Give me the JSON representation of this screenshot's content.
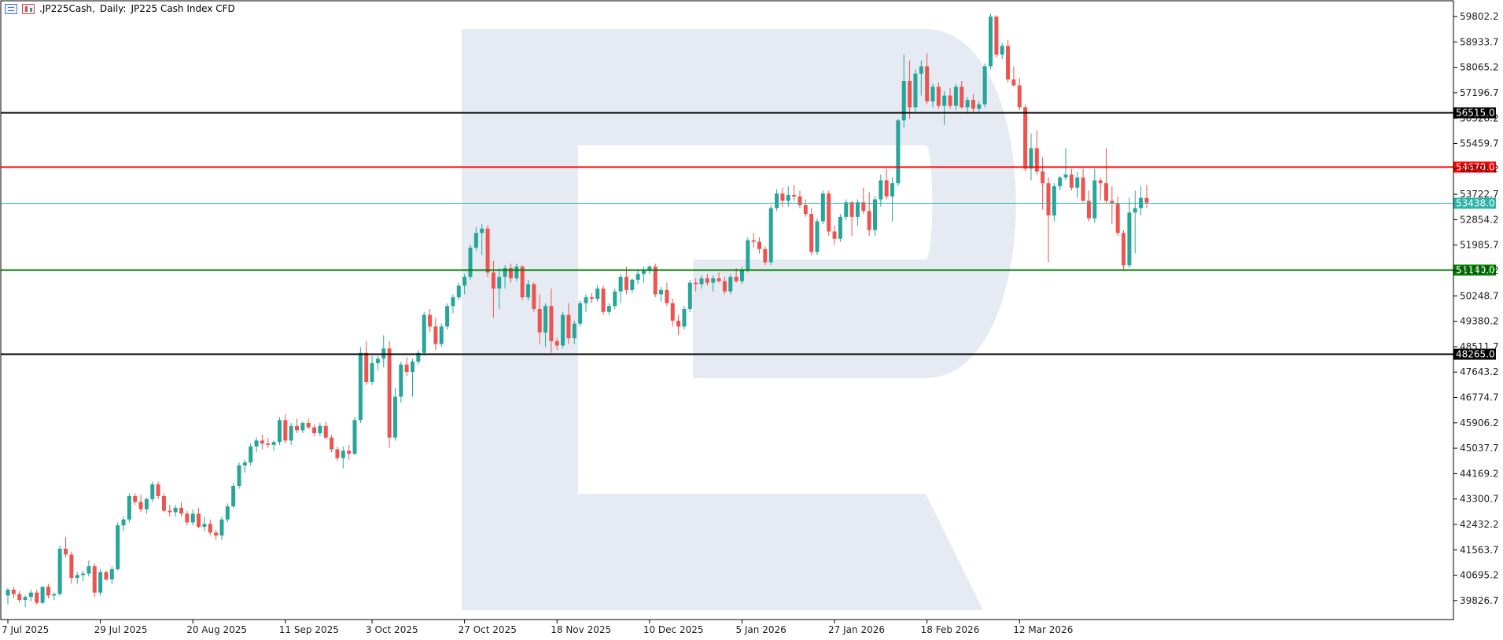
{
  "header": {
    "symbol": ".JP225Cash,",
    "timeframe": "Daily:",
    "description": "JP225 Cash Index CFD",
    "icons": [
      "chart-bars-icon",
      "chart-candles-icon"
    ]
  },
  "chart_data": {
    "type": "candlestick",
    "y_axis": {
      "min": 39500,
      "max": 60100,
      "ticks": [
        "59802.2",
        "58933.7",
        "58065.2",
        "57196.7",
        "56328.2",
        "55459.7",
        "54591.2",
        "53722.7",
        "52854.2",
        "51985.7",
        "51117.2",
        "50248.7",
        "49380.2",
        "48511.7",
        "47643.2",
        "46774.7",
        "45906.2",
        "45037.7",
        "44169.2",
        "43300.7",
        "42432.2",
        "41563.7",
        "40695.2",
        "39826.7"
      ]
    },
    "x_axis": {
      "labels": [
        {
          "text": "7 Jul 2025",
          "index": 0
        },
        {
          "text": "29 Jul 2025",
          "index": 16
        },
        {
          "text": "20 Aug 2025",
          "index": 32
        },
        {
          "text": "11 Sep 2025",
          "index": 48
        },
        {
          "text": "3 Oct 2025",
          "index": 63
        },
        {
          "text": "27 Oct 2025",
          "index": 79
        },
        {
          "text": "18 Nov 2025",
          "index": 95
        },
        {
          "text": "10 Dec 2025",
          "index": 111
        },
        {
          "text": "5 Jan 2026",
          "index": 127
        },
        {
          "text": "27 Jan 2026",
          "index": 143
        },
        {
          "text": "18 Feb 2026",
          "index": 159
        },
        {
          "text": "12 Mar 2026",
          "index": 175
        }
      ]
    },
    "levels": [
      {
        "value": 56515.0,
        "label": "56515.0",
        "color": "#000000",
        "style": "line-dark"
      },
      {
        "value": 54670.0,
        "label": "54670.0",
        "color": "#ff0000",
        "style": "line-red"
      },
      {
        "value": 53438.0,
        "label": "53438.0",
        "color": "#2ab3a8",
        "style": "line-current"
      },
      {
        "value": 51140.0,
        "label": "51140.0",
        "color": "#008000",
        "style": "line-green"
      },
      {
        "value": 48265.0,
        "label": "48265.0",
        "color": "#000000",
        "style": "line-dark"
      }
    ],
    "colors": {
      "bull": "#26a69a",
      "bear": "#ef5350",
      "grid": "#dddddd",
      "watermark": "#e6ebf3"
    },
    "candles": [
      [
        40000,
        40250,
        39700,
        40200
      ],
      [
        40200,
        40300,
        39900,
        40050
      ],
      [
        40050,
        40150,
        39750,
        39850
      ],
      [
        39850,
        40000,
        39600,
        39950
      ],
      [
        39950,
        40200,
        39800,
        40100
      ],
      [
        40100,
        40200,
        39700,
        39750
      ],
      [
        39750,
        40300,
        39700,
        40300
      ],
      [
        40300,
        40400,
        39900,
        40000
      ],
      [
        40000,
        40100,
        39850,
        40050
      ],
      [
        40050,
        41700,
        40000,
        41600
      ],
      [
        41600,
        42000,
        41300,
        41400
      ],
      [
        41400,
        41500,
        40400,
        40600
      ],
      [
        40600,
        40800,
        40400,
        40700
      ],
      [
        40700,
        40850,
        40500,
        40750
      ],
      [
        40750,
        41200,
        40650,
        41000
      ],
      [
        41000,
        41100,
        39950,
        40100
      ],
      [
        40100,
        40900,
        40000,
        40800
      ],
      [
        40800,
        40850,
        40500,
        40550
      ],
      [
        40550,
        41000,
        40400,
        40900
      ],
      [
        40900,
        42500,
        40850,
        42400
      ],
      [
        42400,
        42700,
        42200,
        42600
      ],
      [
        42600,
        43500,
        42500,
        43400
      ],
      [
        43400,
        43500,
        43100,
        43200
      ],
      [
        43200,
        43450,
        42850,
        42950
      ],
      [
        42950,
        43350,
        42800,
        43300
      ],
      [
        43300,
        43900,
        43200,
        43800
      ],
      [
        43800,
        43900,
        43300,
        43400
      ],
      [
        43400,
        43500,
        42850,
        42900
      ],
      [
        42900,
        43100,
        42700,
        42850
      ],
      [
        42850,
        43100,
        42700,
        43000
      ],
      [
        43000,
        43200,
        42700,
        42800
      ],
      [
        42800,
        42900,
        42400,
        42500
      ],
      [
        42500,
        42950,
        42400,
        42800
      ],
      [
        42800,
        43000,
        42300,
        42350
      ],
      [
        42350,
        42700,
        42200,
        42450
      ],
      [
        42450,
        42600,
        42050,
        42150
      ],
      [
        42150,
        42250,
        41900,
        42050
      ],
      [
        42050,
        42700,
        41900,
        42600
      ],
      [
        42600,
        43150,
        42500,
        43050
      ],
      [
        43050,
        43850,
        43000,
        43750
      ],
      [
        43750,
        44550,
        43650,
        44450
      ],
      [
        44450,
        44650,
        44200,
        44550
      ],
      [
        44550,
        45200,
        44450,
        45100
      ],
      [
        45100,
        45400,
        44900,
        45300
      ],
      [
        45300,
        45500,
        45000,
        45200
      ],
      [
        45200,
        45400,
        45050,
        45150
      ],
      [
        45150,
        45300,
        44950,
        45250
      ],
      [
        45250,
        46100,
        45150,
        46000
      ],
      [
        46000,
        46200,
        45200,
        45300
      ],
      [
        45300,
        45900,
        45150,
        45800
      ],
      [
        45800,
        46050,
        45550,
        45650
      ],
      [
        45650,
        45950,
        45550,
        45900
      ],
      [
        45900,
        46050,
        45700,
        45750
      ],
      [
        45750,
        45850,
        45450,
        45550
      ],
      [
        45550,
        45900,
        45450,
        45800
      ],
      [
        45800,
        45950,
        45350,
        45400
      ],
      [
        45400,
        45500,
        44900,
        45000
      ],
      [
        45000,
        45100,
        44600,
        44700
      ],
      [
        44700,
        45100,
        44350,
        44950
      ],
      [
        44950,
        45150,
        44650,
        44850
      ],
      [
        44850,
        46100,
        44800,
        46000
      ],
      [
        46000,
        48500,
        45900,
        48300
      ],
      [
        48300,
        48700,
        47200,
        47300
      ],
      [
        47300,
        48200,
        47200,
        47950
      ],
      [
        47950,
        48200,
        47700,
        48100
      ],
      [
        48100,
        48900,
        47800,
        48450
      ],
      [
        48450,
        48700,
        45050,
        45400
      ],
      [
        45400,
        47100,
        45300,
        46800
      ],
      [
        46800,
        48000,
        46600,
        47900
      ],
      [
        47900,
        48150,
        47500,
        47650
      ],
      [
        47650,
        48100,
        46800,
        48000
      ],
      [
        48000,
        48400,
        47900,
        48300
      ],
      [
        48300,
        49700,
        48200,
        49600
      ],
      [
        49600,
        49800,
        49000,
        49200
      ],
      [
        49200,
        49500,
        48400,
        48600
      ],
      [
        48600,
        49300,
        48500,
        49200
      ],
      [
        49200,
        50000,
        49100,
        49900
      ],
      [
        49900,
        50300,
        49650,
        50200
      ],
      [
        50200,
        50700,
        50100,
        50600
      ],
      [
        50600,
        51000,
        50300,
        50900
      ],
      [
        50900,
        52000,
        50800,
        51900
      ],
      [
        51900,
        52600,
        51800,
        52400
      ],
      [
        52400,
        52700,
        51650,
        52550
      ],
      [
        52550,
        52650,
        50900,
        51050
      ],
      [
        51050,
        51450,
        49500,
        50500
      ],
      [
        50500,
        51200,
        49800,
        50900
      ],
      [
        50900,
        51300,
        50500,
        51200
      ],
      [
        51200,
        51350,
        50700,
        50850
      ],
      [
        50850,
        51350,
        50750,
        51250
      ],
      [
        51250,
        51300,
        50100,
        50200
      ],
      [
        50200,
        50800,
        50100,
        50650
      ],
      [
        50650,
        50700,
        49700,
        49800
      ],
      [
        49800,
        50300,
        48600,
        49000
      ],
      [
        49000,
        50000,
        48500,
        49900
      ],
      [
        49900,
        50500,
        48300,
        48700
      ],
      [
        48700,
        48800,
        48400,
        48550
      ],
      [
        48550,
        49700,
        48450,
        49600
      ],
      [
        49600,
        50000,
        48600,
        48800
      ],
      [
        48800,
        49400,
        48600,
        49300
      ],
      [
        49300,
        50100,
        49200,
        50000
      ],
      [
        50000,
        50300,
        49700,
        50200
      ],
      [
        50200,
        50350,
        50000,
        50150
      ],
      [
        50150,
        50600,
        50050,
        50500
      ],
      [
        50500,
        50600,
        49600,
        49700
      ],
      [
        49700,
        50000,
        49600,
        49900
      ],
      [
        49900,
        50500,
        49800,
        50400
      ],
      [
        50400,
        51000,
        50000,
        50900
      ],
      [
        50900,
        51250,
        50300,
        50450
      ],
      [
        50450,
        50850,
        50350,
        50800
      ],
      [
        50800,
        51150,
        50650,
        51000
      ],
      [
        51000,
        51250,
        50700,
        51100
      ],
      [
        51100,
        51300,
        51000,
        51250
      ],
      [
        51250,
        51350,
        50200,
        50300
      ],
      [
        50300,
        50550,
        50050,
        50450
      ],
      [
        50450,
        50700,
        49900,
        50000
      ],
      [
        50000,
        50150,
        49200,
        49400
      ],
      [
        49400,
        49600,
        48900,
        49200
      ],
      [
        49200,
        49900,
        49100,
        49800
      ],
      [
        49800,
        50800,
        49700,
        50700
      ],
      [
        50700,
        50850,
        50400,
        50650
      ],
      [
        50650,
        50950,
        50500,
        50850
      ],
      [
        50850,
        51000,
        50600,
        50700
      ],
      [
        50700,
        50950,
        50400,
        50850
      ],
      [
        50850,
        51050,
        50700,
        50750
      ],
      [
        50750,
        50900,
        50300,
        50400
      ],
      [
        50400,
        51000,
        50300,
        50900
      ],
      [
        50900,
        51200,
        50700,
        50750
      ],
      [
        50750,
        51250,
        50650,
        51150
      ],
      [
        51150,
        52250,
        51050,
        52150
      ],
      [
        52150,
        52400,
        51900,
        52100
      ],
      [
        52100,
        52250,
        51700,
        51850
      ],
      [
        51850,
        51950,
        51300,
        51400
      ],
      [
        51400,
        53350,
        51300,
        53250
      ],
      [
        53250,
        53900,
        53150,
        53750
      ],
      [
        53750,
        53950,
        53300,
        53500
      ],
      [
        53500,
        54000,
        53300,
        53700
      ],
      [
        53700,
        54050,
        53500,
        53650
      ],
      [
        53650,
        53850,
        53250,
        53350
      ],
      [
        53350,
        53550,
        52950,
        53050
      ],
      [
        53050,
        53250,
        51650,
        51750
      ],
      [
        51750,
        52900,
        51650,
        52800
      ],
      [
        52800,
        53850,
        52700,
        53750
      ],
      [
        53750,
        53850,
        52300,
        52450
      ],
      [
        52450,
        52650,
        52000,
        52200
      ],
      [
        52200,
        53050,
        52100,
        52950
      ],
      [
        52950,
        53550,
        52850,
        53450
      ],
      [
        53450,
        53500,
        52300,
        52950
      ],
      [
        52950,
        53550,
        52650,
        53450
      ],
      [
        53450,
        53950,
        53050,
        53150
      ],
      [
        53150,
        53800,
        52300,
        52500
      ],
      [
        52500,
        53650,
        52300,
        53550
      ],
      [
        53550,
        54400,
        53300,
        54200
      ],
      [
        54200,
        54600,
        53550,
        53650
      ],
      [
        53650,
        54300,
        52800,
        54100
      ],
      [
        54100,
        56300,
        54000,
        56250
      ],
      [
        56250,
        58500,
        56000,
        57600
      ],
      [
        57600,
        58300,
        56300,
        56700
      ],
      [
        56700,
        58000,
        56550,
        57850
      ],
      [
        57850,
        58300,
        57100,
        58100
      ],
      [
        58100,
        58550,
        56800,
        56900
      ],
      [
        56900,
        57500,
        56700,
        57400
      ],
      [
        57400,
        57550,
        56650,
        56750
      ],
      [
        56750,
        57250,
        56100,
        57100
      ],
      [
        57100,
        57350,
        56650,
        56750
      ],
      [
        56750,
        57500,
        56600,
        57400
      ],
      [
        57400,
        57600,
        56650,
        56700
      ],
      [
        56700,
        57050,
        56500,
        56950
      ],
      [
        56950,
        57150,
        56550,
        56650
      ],
      [
        56650,
        56900,
        56550,
        56800
      ],
      [
        56800,
        58200,
        56700,
        58100
      ],
      [
        58100,
        59900,
        58000,
        59800
      ],
      [
        59800,
        59850,
        58400,
        58500
      ],
      [
        58500,
        58900,
        58350,
        58800
      ],
      [
        58800,
        59000,
        57550,
        57650
      ],
      [
        57650,
        58100,
        57400,
        57450
      ],
      [
        57450,
        57700,
        56600,
        56700
      ],
      [
        56700,
        56800,
        54500,
        54600
      ],
      [
        54600,
        55800,
        54200,
        55300
      ],
      [
        55300,
        55900,
        54400,
        54500
      ],
      [
        54500,
        55000,
        53200,
        54100
      ],
      [
        54100,
        54300,
        51400,
        53000
      ],
      [
        53000,
        54100,
        52800,
        54000
      ],
      [
        54000,
        54350,
        53850,
        54300
      ],
      [
        54300,
        55300,
        54200,
        54400
      ],
      [
        54400,
        54600,
        53850,
        53950
      ],
      [
        53950,
        54500,
        53600,
        54300
      ],
      [
        54300,
        54600,
        53450,
        53500
      ],
      [
        53500,
        53850,
        52800,
        52900
      ],
      [
        52900,
        54600,
        52750,
        54200
      ],
      [
        54200,
        54300,
        53500,
        54100
      ],
      [
        54100,
        55300,
        53400,
        53500
      ],
      [
        53500,
        54000,
        52700,
        53400
      ],
      [
        53400,
        53650,
        52300,
        52400
      ],
      [
        52400,
        52500,
        51100,
        51300
      ],
      [
        51300,
        53600,
        51200,
        53100
      ],
      [
        53100,
        53850,
        51700,
        53250
      ],
      [
        53250,
        54000,
        53000,
        53600
      ],
      [
        53600,
        54050,
        53250,
        53438
      ]
    ]
  }
}
